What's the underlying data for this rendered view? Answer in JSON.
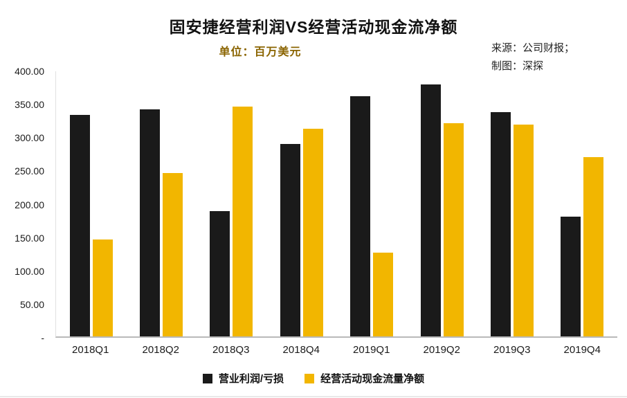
{
  "chart": {
    "title": "固安捷经营利润VS经营活动现金流净额",
    "subtitle": "单位：百万美元",
    "source_line1": "来源：公司财报；",
    "source_line2": "制图：深探"
  },
  "chart_data": {
    "type": "bar",
    "title": "固安捷经营利润VS经营活动现金流净额",
    "subtitle_unit": "百万美元",
    "categories": [
      "2018Q1",
      "2018Q2",
      "2018Q3",
      "2018Q4",
      "2019Q1",
      "2019Q2",
      "2019Q3",
      "2019Q4"
    ],
    "series": [
      {
        "name": "营业利润/亏损",
        "color": "#1a1a1a",
        "values": [
          334,
          343,
          189,
          290,
          362,
          380,
          338,
          181
        ]
      },
      {
        "name": "经营活动现金流量净额",
        "color": "#f2b600",
        "values": [
          146,
          247,
          347,
          313,
          126,
          322,
          320,
          271
        ]
      }
    ],
    "xlabel": "",
    "ylabel": "",
    "ylim": [
      0,
      400
    ],
    "ytick_step": 50,
    "ytick_labels": [
      "400.00",
      "350.00",
      "300.00",
      "250.00",
      "200.00",
      "150.00",
      "100.00",
      "50.00",
      "-"
    ],
    "grid": false,
    "legend_position": "bottom"
  }
}
